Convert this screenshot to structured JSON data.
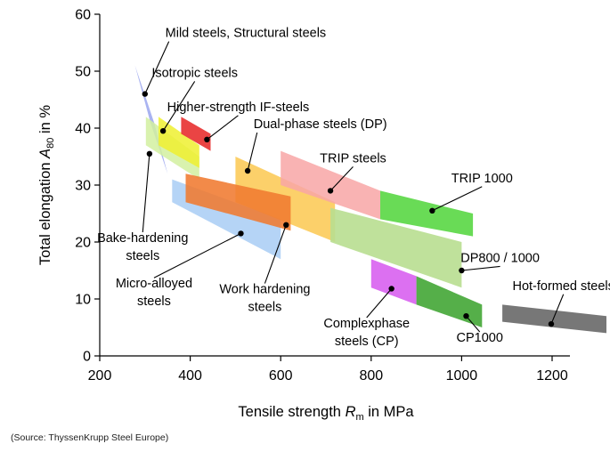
{
  "chart_data": {
    "type": "area",
    "title": "",
    "xlabel": {
      "main": "Tensile strength ",
      "symbol": "R",
      "subscript": "m",
      "unit": " in MPa"
    },
    "ylabel": {
      "main": "Total elongation ",
      "symbol": "A",
      "subscript": "80",
      "unit": " in %"
    },
    "xlim": [
      200,
      1300
    ],
    "ylim": [
      0,
      60
    ],
    "x_ticks": [
      200,
      400,
      600,
      800,
      1000,
      1200
    ],
    "y_ticks": [
      0,
      10,
      20,
      30,
      40,
      50,
      60
    ],
    "grid": false,
    "series": [
      {
        "name": "Mild steels, Structural steels",
        "color": "#9aa6ef",
        "opacity": 0.85,
        "polygon": [
          [
            278,
            51
          ],
          [
            320,
            41
          ],
          [
            350,
            32
          ],
          [
            312,
            41
          ]
        ],
        "marker": [
          300,
          46
        ],
        "label_pos": [
          345,
          56
        ],
        "align": "start"
      },
      {
        "name": "Micro-alloyed steels",
        "color": "#a8cdf5",
        "opacity": 0.85,
        "polygon": [
          [
            360,
            31
          ],
          [
            600,
            24
          ],
          [
            600,
            17
          ],
          [
            360,
            27
          ]
        ],
        "marker": [
          512,
          21.5
        ],
        "label_pos": [
          320,
          12
        ],
        "align": "middle",
        "lines": [
          "Micro-alloyed",
          "steels"
        ]
      },
      {
        "name": "Bake-hardening steels",
        "color": "#d2f0a0",
        "opacity": 0.85,
        "polygon": [
          [
            302,
            42
          ],
          [
            420,
            35
          ],
          [
            420,
            31
          ],
          [
            302,
            37
          ]
        ],
        "marker": [
          310,
          35.5
        ],
        "label_pos": [
          295,
          20
        ],
        "align": "middle",
        "lines": [
          "Bake-hardening",
          "steels"
        ]
      },
      {
        "name": "Isotropic steels",
        "color": "#eef030",
        "opacity": 0.85,
        "polygon": [
          [
            330,
            42
          ],
          [
            420,
            37
          ],
          [
            420,
            33
          ],
          [
            330,
            37
          ]
        ],
        "marker": [
          340,
          39.5
        ],
        "label_pos": [
          410,
          49
        ],
        "align": "middle"
      },
      {
        "name": "Higher-strength IF-steels",
        "color": "#e83030",
        "opacity": 0.9,
        "polygon": [
          [
            380,
            42
          ],
          [
            445,
            39
          ],
          [
            445,
            36
          ],
          [
            380,
            39
          ]
        ],
        "marker": [
          437,
          38
        ],
        "label_pos": [
          506,
          43
        ],
        "align": "middle"
      },
      {
        "name": "Dual-phase steels (DP)",
        "color": "#fbc850",
        "opacity": 0.85,
        "polygon": [
          [
            500,
            35
          ],
          [
            720,
            27
          ],
          [
            720,
            20
          ],
          [
            500,
            27
          ]
        ],
        "marker": [
          527,
          32.5
        ],
        "label_pos": [
          540,
          40
        ],
        "align": "start"
      },
      {
        "name": "Work hardening steels",
        "color": "#f07a30",
        "opacity": 0.88,
        "polygon": [
          [
            390,
            32
          ],
          [
            622,
            28
          ],
          [
            622,
            22
          ],
          [
            390,
            27
          ]
        ],
        "marker": [
          612,
          23
        ],
        "label_pos": [
          565,
          11
        ],
        "align": "middle",
        "lines": [
          "Work hardening",
          "steels"
        ]
      },
      {
        "name": "TRIP steels",
        "color": "#f8a6a6",
        "opacity": 0.85,
        "polygon": [
          [
            600,
            36
          ],
          [
            820,
            29
          ],
          [
            820,
            24
          ],
          [
            600,
            30
          ]
        ],
        "marker": [
          710,
          29
        ],
        "label_pos": [
          760,
          34
        ],
        "align": "middle"
      },
      {
        "name": "DP800 / 1000",
        "color": "#b8de90",
        "opacity": 0.9,
        "polygon": [
          [
            710,
            26
          ],
          [
            1000,
            20
          ],
          [
            1000,
            12
          ],
          [
            710,
            20
          ]
        ],
        "marker": [
          1000,
          15
        ],
        "label_pos": [
          1085,
          16.5
        ],
        "align": "middle"
      },
      {
        "name": "TRIP 1000",
        "color": "#5cd848",
        "opacity": 0.92,
        "polygon": [
          [
            820,
            29
          ],
          [
            1025,
            25
          ],
          [
            1025,
            21
          ],
          [
            820,
            24
          ]
        ],
        "marker": [
          935,
          25.5
        ],
        "label_pos": [
          1045,
          30.5
        ],
        "align": "middle"
      },
      {
        "name": "Complexphase steels (CP)",
        "color": "#d860f0",
        "opacity": 0.9,
        "polygon": [
          [
            800,
            17
          ],
          [
            900,
            14
          ],
          [
            900,
            9
          ],
          [
            800,
            12
          ]
        ],
        "marker": [
          845,
          11.8
        ],
        "label_pos": [
          790,
          5
        ],
        "align": "middle",
        "lines": [
          "Complexphase",
          "steels (CP)"
        ]
      },
      {
        "name": "CP1000",
        "color": "#46a83a",
        "opacity": 0.92,
        "polygon": [
          [
            900,
            14
          ],
          [
            1045,
            9
          ],
          [
            1045,
            5
          ],
          [
            900,
            9
          ]
        ],
        "marker": [
          1010,
          7
        ],
        "label_pos": [
          1040,
          2.5
        ],
        "align": "middle"
      },
      {
        "name": "Hot-formed steels",
        "color": "#707070",
        "opacity": 0.95,
        "polygon": [
          [
            1090,
            9
          ],
          [
            1320,
            7
          ],
          [
            1320,
            4
          ],
          [
            1090,
            6
          ]
        ],
        "marker": [
          1198,
          5.6
        ],
        "label_pos": [
          1225,
          11.6
        ],
        "align": "middle"
      }
    ]
  },
  "source": "(Source: ThyssenKrupp Steel Europe)"
}
